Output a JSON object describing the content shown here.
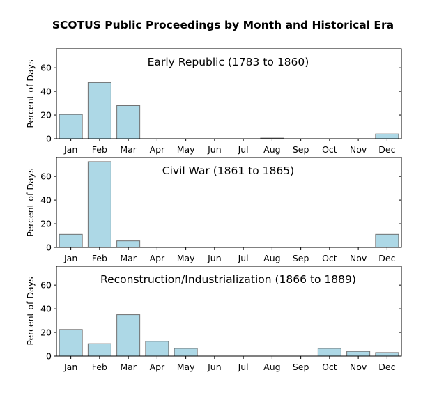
{
  "chart_data": {
    "type": "bar",
    "title": "SCOTUS Public Proceedings by Month and Historical Era",
    "ylabel": "Percent of Days",
    "ylim": [
      0,
      76
    ],
    "yticks": [
      0,
      20,
      40,
      60
    ],
    "categories": [
      "Jan",
      "Feb",
      "Mar",
      "Apr",
      "May",
      "Jun",
      "Jul",
      "Aug",
      "Sep",
      "Oct",
      "Nov",
      "Dec"
    ],
    "bar_color": "#add8e6",
    "bar_edge_color": "#707070",
    "grid": false,
    "panels": [
      {
        "label": "Early Republic (1783 to 1860)",
        "values": [
          20.5,
          47.5,
          28.0,
          0,
          0,
          0,
          0,
          0.5,
          0,
          0,
          0,
          4.0
        ]
      },
      {
        "label": "Civil War (1861 to 1865)",
        "values": [
          11.0,
          72.5,
          5.5,
          0,
          0,
          0,
          0,
          0,
          0,
          0,
          0,
          11.0
        ]
      },
      {
        "label": "Reconstruction/Industrialization (1866 to 1889)",
        "values": [
          22.5,
          10.5,
          35.0,
          12.5,
          6.5,
          0,
          0,
          0,
          0,
          6.5,
          4.0,
          3.0
        ]
      }
    ]
  }
}
